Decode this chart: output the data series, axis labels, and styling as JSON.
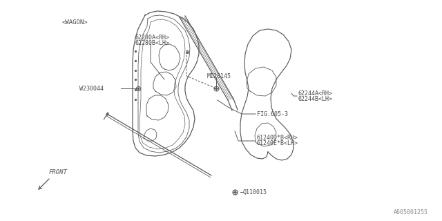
{
  "background_color": "#ffffff",
  "line_color": "#5a5a5a",
  "text_color": "#4a4a4a",
  "watermark": "A605001255",
  "labels": {
    "wagon": "<WAGON>",
    "part1a": "62280A<RH>",
    "part1b": "62280B<LH>",
    "part2a": "61240D*B<RH>",
    "part2b": "61240E*B<LH>",
    "part3": "FIG.605-3",
    "part4a": "62244A<RH>",
    "part4b": "62244B<LH>",
    "part5": "W230044",
    "part6": "M120145",
    "part7": "Q110015",
    "front": "FRONT"
  }
}
